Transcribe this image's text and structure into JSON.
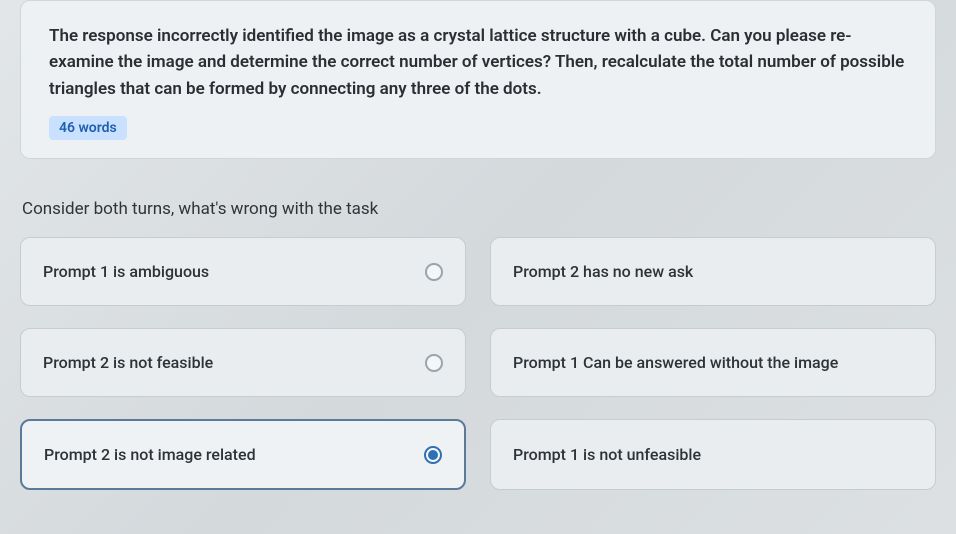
{
  "prompt_card": {
    "text": "The response incorrectly identified the image as a crystal lattice structure with a cube. Can you please re-examine the image and determine the correct number of vertices? Then, recalculate the total number of possible triangles that can be formed by connecting any three of the dots.",
    "word_count_badge": "46 words"
  },
  "question": "Consider both turns, what's wrong with the task",
  "options": [
    {
      "label": "Prompt 1 is ambiguous",
      "selected": false,
      "show_radio": true
    },
    {
      "label": "Prompt 2 has no new ask",
      "selected": false,
      "show_radio": false
    },
    {
      "label": "Prompt 2 is not feasible",
      "selected": false,
      "show_radio": true
    },
    {
      "label": "Prompt 1 Can be answered without the image",
      "selected": false,
      "show_radio": false
    },
    {
      "label": "Prompt 2 is not image related",
      "selected": true,
      "show_radio": true
    },
    {
      "label": "Prompt 1 is not unfeasible",
      "selected": false,
      "show_radio": false
    }
  ],
  "colors": {
    "card_bg": "#eef1f3",
    "card_border": "#cfd5d9",
    "badge_bg": "#c9e1ff",
    "badge_text": "#1f5fb0",
    "option_bg": "#e9edef",
    "option_border": "#c6ccd1",
    "selected_border": "#5b7a9a",
    "radio_checked": "#2f6fb3",
    "text_primary": "#2b2f33"
  },
  "typography": {
    "prompt_fontsize": 17,
    "prompt_weight": 600,
    "question_fontsize": 17,
    "option_fontsize": 16
  }
}
